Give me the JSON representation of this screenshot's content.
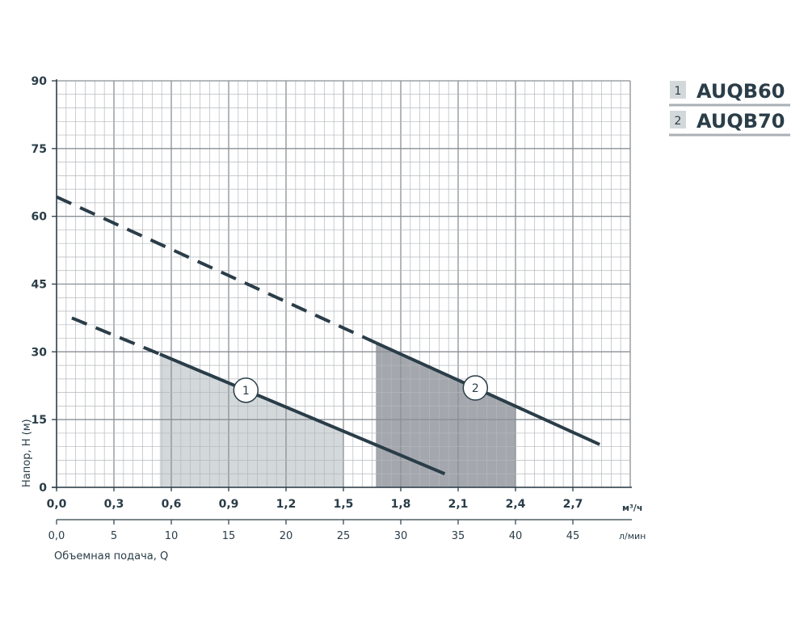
{
  "chart_data": {
    "type": "line",
    "xlabel": "Объемная подача, Q",
    "ylabel": "Напор, Н (м)",
    "x_unit": "м³/ч",
    "x2_unit": "л/мин",
    "xlim": [
      0,
      3.0
    ],
    "ylim": [
      0,
      90
    ],
    "x_ticks": [
      "0,0",
      "0,3",
      "0,6",
      "0,9",
      "1,2",
      "1,5",
      "1,8",
      "2,1",
      "2,4",
      "2,7"
    ],
    "x2_ticks": [
      "0,0",
      "5",
      "10",
      "15",
      "20",
      "25",
      "30",
      "35",
      "40",
      "45"
    ],
    "x2_values": [
      0,
      5,
      10,
      15,
      20,
      25,
      30,
      35,
      40,
      45
    ],
    "y_ticks": [
      "0",
      "15",
      "30",
      "45",
      "60",
      "75",
      "90"
    ],
    "y_values": [
      0,
      15,
      30,
      45,
      60,
      75,
      90
    ],
    "grid": true,
    "legend_position": "top-right",
    "series": [
      {
        "name": "AUQB60",
        "number": "1",
        "dashed": [
          [
            0.08,
            37.5
          ],
          [
            0.54,
            29.5
          ]
        ],
        "solid": [
          [
            0.54,
            29.5
          ],
          [
            2.03,
            3.0
          ]
        ],
        "operating_range": [
          0.54,
          1.5
        ],
        "marker_x": 0.99,
        "marker_label": "1",
        "fill_color": "#d3d8db"
      },
      {
        "name": "AUQB70",
        "number": "2",
        "dashed": [
          [
            0.0,
            64.3
          ],
          [
            1.67,
            32.0
          ]
        ],
        "solid": [
          [
            1.67,
            32.0
          ],
          [
            2.84,
            9.5
          ]
        ],
        "operating_range": [
          1.67,
          2.4
        ],
        "marker_x": 2.19,
        "marker_label": "2",
        "fill_color": "#a4a8ae"
      }
    ],
    "colors": {
      "line": "#2a3d48",
      "grid_major": "#8a8f94",
      "grid_minor": "#b4b8bc",
      "legend_box": "#d3d8db"
    }
  }
}
